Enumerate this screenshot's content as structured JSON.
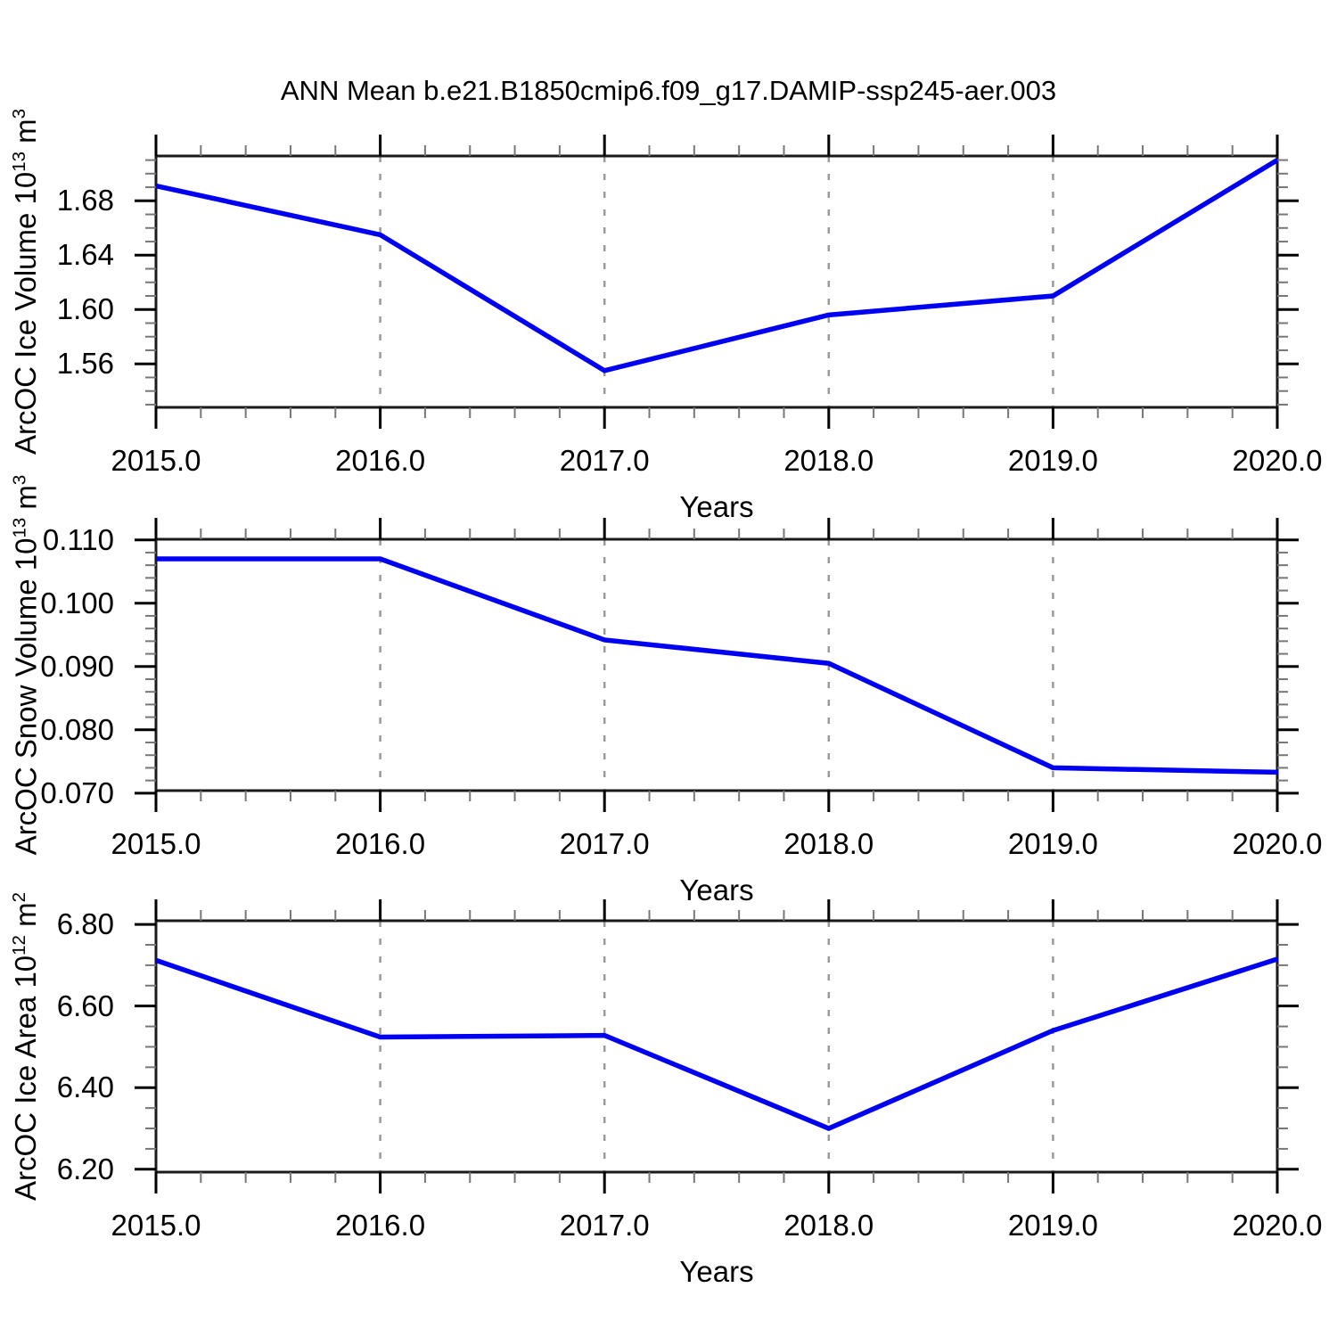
{
  "title": "ANN Mean b.e21.B1850cmip6.f09_g17.DAMIP-ssp245-aer.003",
  "x_axis": {
    "label": "Years",
    "range": [
      2015,
      2020
    ],
    "major_tick_labels": [
      "2015.0",
      "2016.0",
      "2017.0",
      "2018.0",
      "2019.0",
      "2020.0"
    ],
    "minor_step": 0.2,
    "gridline_years": [
      2016,
      2017,
      2018,
      2019
    ]
  },
  "styles": {
    "line_color": "#0000f2",
    "grid_color": "#9a9a9a",
    "axis_color": "#1a1a1a",
    "minor_tick_color": "#777777",
    "text_color": "#000000"
  },
  "chart_data": [
    {
      "type": "line",
      "ylabel": {
        "base": "ArcOC Ice Volume 10",
        "exp": "13",
        "unit": " m",
        "unit_exp": "3"
      },
      "x": [
        2015,
        2016,
        2017,
        2018,
        2019,
        2020
      ],
      "values": [
        1.691,
        1.655,
        1.555,
        1.596,
        1.61,
        1.71
      ],
      "ylim": [
        1.528,
        1.713
      ],
      "yticks": [
        {
          "value": 1.56,
          "label": "1.56"
        },
        {
          "value": 1.6,
          "label": "1.60"
        },
        {
          "value": 1.64,
          "label": "1.64"
        },
        {
          "value": 1.68,
          "label": "1.68"
        }
      ],
      "minor_step": 0.01
    },
    {
      "type": "line",
      "ylabel": {
        "base": "ArcOC Snow Volume 10",
        "exp": "13",
        "unit": " m",
        "unit_exp": "3"
      },
      "x": [
        2015,
        2016,
        2017,
        2018,
        2019,
        2020
      ],
      "values": [
        0.107,
        0.107,
        0.0942,
        0.0905,
        0.074,
        0.0733
      ],
      "ylim": [
        0.0704,
        0.1101
      ],
      "yticks": [
        {
          "value": 0.07,
          "label": "0.070"
        },
        {
          "value": 0.08,
          "label": "0.080"
        },
        {
          "value": 0.09,
          "label": "0.090"
        },
        {
          "value": 0.1,
          "label": "0.100"
        },
        {
          "value": 0.11,
          "label": "0.110"
        }
      ],
      "minor_step": 0.002
    },
    {
      "type": "line",
      "ylabel": {
        "base": "ArcOC Ice Area 10",
        "exp": "12",
        "unit": " m",
        "unit_exp": "2"
      },
      "x": [
        2015,
        2016,
        2017,
        2018,
        2019,
        2020
      ],
      "values": [
        6.712,
        6.524,
        6.528,
        6.3,
        6.54,
        6.715
      ],
      "ylim": [
        6.193,
        6.809
      ],
      "yticks": [
        {
          "value": 6.2,
          "label": "6.20"
        },
        {
          "value": 6.4,
          "label": "6.40"
        },
        {
          "value": 6.6,
          "label": "6.60"
        },
        {
          "value": 6.8,
          "label": "6.80"
        }
      ],
      "minor_step": 0.05
    }
  ]
}
